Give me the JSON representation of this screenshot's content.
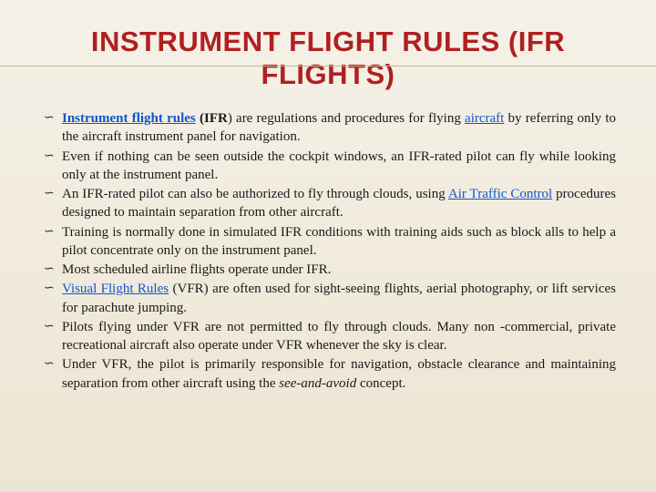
{
  "slide": {
    "title": "INSTRUMENT FLIGHT RULES (IFR FLIGHTS)",
    "title_color": "#b02020",
    "title_fontsize": 31,
    "background_gradient": [
      "#f5f1e8",
      "#ede5d3"
    ],
    "bullet_marker": "༒",
    "body_fontsize": 15,
    "body_color": "#1a1a1a",
    "link_color": "#1155cc",
    "bullets": [
      {
        "segments": [
          {
            "text": "Instrument flight rules",
            "bold": true,
            "link": true
          },
          {
            "text": " (",
            "bold": true
          },
          {
            "text": "IFR",
            "bold": true
          },
          {
            "text": ") are regulations and procedures for flying "
          },
          {
            "text": "aircraft",
            "link": true
          },
          {
            "text": " by referring only to the aircraft instrument panel for navigation."
          }
        ]
      },
      {
        "segments": [
          {
            "text": "Even if nothing can be seen outside the cockpit windows, an IFR-rated pilot can fly while looking only at the instrument panel."
          }
        ]
      },
      {
        "segments": [
          {
            "text": "An IFR-rated pilot can also be authorized to fly through clouds, using "
          },
          {
            "text": "Air Traffic Control",
            "link": true
          },
          {
            "text": " procedures designed to maintain separation from other aircraft."
          }
        ]
      },
      {
        "segments": [
          {
            "text": "Training is normally done in simulated IFR conditions with training aids such as block alls to help a pilot concentrate only on the instrument panel."
          }
        ]
      },
      {
        "segments": [
          {
            "text": "Most scheduled airline flights operate under IFR."
          }
        ]
      },
      {
        "segments": [
          {
            "text": "Visual Flight Rules",
            "link": true
          },
          {
            "text": " (VFR) are often used for sight-seeing flights, aerial photography, or lift services for parachute jumping."
          }
        ]
      },
      {
        "segments": [
          {
            "text": "Pilots flying under VFR are not permitted to fly through clouds. Many non -commercial, private recreational aircraft also operate under VFR whenever the sky is clear."
          }
        ]
      },
      {
        "segments": [
          {
            "text": "Under VFR, the pilot is primarily responsible for navigation, obstacle clearance and maintaining separation from other aircraft using the "
          },
          {
            "text": "see-and-avoid",
            "italic": true
          },
          {
            "text": " concept."
          }
        ]
      }
    ]
  }
}
